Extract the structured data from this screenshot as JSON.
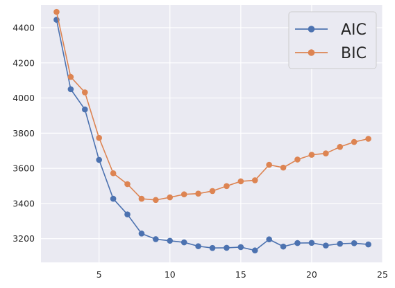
{
  "chart_data": {
    "type": "line",
    "title": "",
    "xlabel": "",
    "ylabel": "",
    "xlim": [
      0.9,
      25
    ],
    "ylim": [
      3065,
      4530
    ],
    "x_ticks": [
      5,
      10,
      15,
      20,
      25
    ],
    "y_ticks": [
      3200,
      3400,
      3600,
      3800,
      4000,
      4200,
      4400
    ],
    "grid": true,
    "legend_position": "top-right",
    "x": [
      2,
      3,
      4,
      5,
      6,
      7,
      8,
      9,
      10,
      11,
      12,
      13,
      14,
      15,
      16,
      17,
      18,
      19,
      20,
      21,
      22,
      23,
      24
    ],
    "series": [
      {
        "name": "AIC",
        "color": "#4c72b0",
        "values": [
          4445,
          4050,
          3935,
          3648,
          3427,
          3338,
          3229,
          3197,
          3188,
          3179,
          3157,
          3147,
          3148,
          3152,
          3133,
          3196,
          3155,
          3175,
          3176,
          3161,
          3171,
          3174,
          3167
        ]
      },
      {
        "name": "BIC",
        "color": "#dd8452",
        "values": [
          4490,
          4120,
          4032,
          3773,
          3572,
          3510,
          3427,
          3420,
          3435,
          3452,
          3456,
          3471,
          3499,
          3526,
          3532,
          3620,
          3604,
          3650,
          3677,
          3685,
          3722,
          3750,
          3768
        ]
      }
    ]
  }
}
